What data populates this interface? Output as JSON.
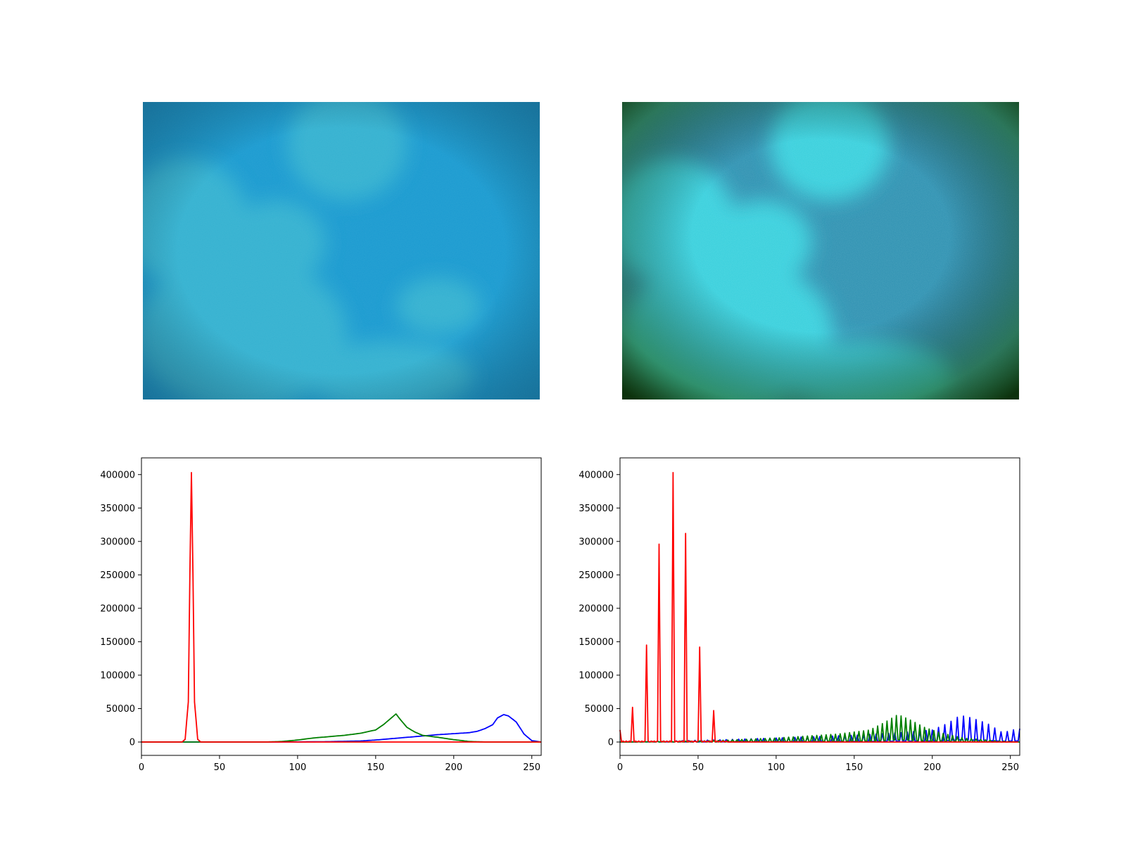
{
  "colors": {
    "red": "#ff0000",
    "green": "#008000",
    "blue": "#0000ff",
    "original_water": "#1a9ad0",
    "original_rock": "#3cb9d0",
    "enhanced_water": "#2b8fb0",
    "enhanced_rock": "#39e0e8",
    "enhanced_edge": "#0e3d08"
  },
  "images": [
    {
      "name": "original-underwater-image"
    },
    {
      "name": "enhanced-underwater-image"
    }
  ],
  "chart_data": [
    {
      "type": "line",
      "title": "",
      "xlabel": "",
      "ylabel": "",
      "xlim": [
        0,
        256
      ],
      "ylim": [
        -20000,
        425000
      ],
      "xticks": [
        0,
        50,
        100,
        150,
        200,
        250
      ],
      "yticks": [
        0,
        50000,
        100000,
        150000,
        200000,
        250000,
        300000,
        350000,
        400000
      ],
      "series": [
        {
          "color": "blue",
          "x": [
            0,
            90,
            120,
            140,
            150,
            160,
            170,
            180,
            190,
            200,
            210,
            215,
            220,
            225,
            228,
            232,
            235,
            240,
            245,
            250,
            256
          ],
          "y": [
            0,
            0,
            500,
            1500,
            3000,
            5000,
            7000,
            9000,
            11000,
            12500,
            14000,
            16000,
            20000,
            26000,
            36000,
            41000,
            39000,
            30000,
            12000,
            2000,
            0
          ]
        },
        {
          "color": "green",
          "x": [
            0,
            80,
            90,
            100,
            110,
            120,
            130,
            140,
            150,
            155,
            160,
            163,
            166,
            170,
            175,
            180,
            190,
            200,
            210,
            220,
            256
          ],
          "y": [
            0,
            0,
            800,
            3000,
            6000,
            8000,
            10000,
            13000,
            18000,
            26000,
            36000,
            42000,
            33000,
            22000,
            15000,
            10000,
            7000,
            3500,
            800,
            0,
            0
          ]
        },
        {
          "color": "red",
          "x": [
            0,
            26,
            28,
            30,
            31,
            32,
            33,
            34,
            36,
            38,
            256
          ],
          "y": [
            0,
            0,
            4000,
            60000,
            250000,
            403000,
            250000,
            60000,
            4000,
            0,
            0
          ]
        }
      ]
    },
    {
      "type": "line",
      "title": "",
      "xlabel": "",
      "ylabel": "",
      "xlim": [
        0,
        256
      ],
      "ylim": [
        -20000,
        425000
      ],
      "xticks": [
        0,
        50,
        100,
        150,
        200,
        250
      ],
      "yticks": [
        0,
        50000,
        100000,
        150000,
        200000,
        250000,
        300000,
        350000,
        400000
      ],
      "series": [
        {
          "color": "blue",
          "comb_period": 4,
          "envelope_x": [
            0,
            60,
            100,
            150,
            180,
            200,
            210,
            218,
            225,
            235,
            245,
            255
          ],
          "envelope_y": [
            0,
            3000,
            6000,
            10000,
            14000,
            18000,
            28000,
            40000,
            36000,
            28000,
            14000,
            20000
          ]
        },
        {
          "color": "green",
          "comb_period": 3,
          "envelope_x": [
            0,
            60,
            100,
            140,
            160,
            170,
            178,
            185,
            195,
            205,
            220,
            240,
            255
          ],
          "envelope_y": [
            0,
            2000,
            6000,
            12000,
            18000,
            30000,
            41000,
            34000,
            22000,
            14000,
            6000,
            2000,
            0
          ]
        },
        {
          "color": "red",
          "spikes_x": [
            0,
            8,
            17,
            25,
            34,
            42,
            51,
            60
          ],
          "spikes_y": [
            18000,
            52000,
            145000,
            296000,
            403000,
            312000,
            142000,
            47000
          ],
          "floor_period": 2,
          "floor_end": 255
        }
      ]
    }
  ]
}
